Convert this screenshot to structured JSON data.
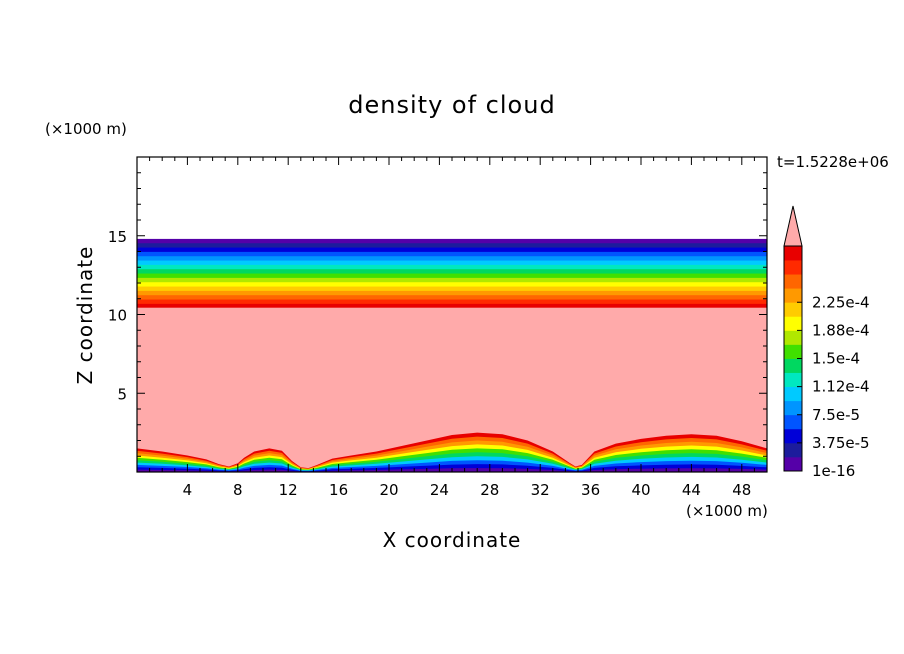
{
  "chart_data": {
    "type": "heatmap",
    "title": "density of cloud",
    "xlabel": "X coordinate",
    "ylabel": "Z coordinate",
    "x_unit": "(×1000 m)",
    "y_unit": "(×1000 m)",
    "time_label": "t=1.5228e+06",
    "xlim": [
      0,
      50
    ],
    "ylim": [
      0,
      20
    ],
    "x_ticks": [
      4,
      8,
      12,
      16,
      20,
      24,
      28,
      32,
      36,
      40,
      44,
      48
    ],
    "y_ticks": [
      5,
      10,
      15
    ],
    "colorbar": {
      "labels": [
        "1e-16",
        "3.75e-5",
        "7.5e-5",
        "1.12e-4",
        "1.5e-4",
        "1.88e-4",
        "2.25e-4"
      ],
      "colors": [
        "#5500a8",
        "#1c1c9c",
        "#0000d8",
        "#0055ff",
        "#0095ff",
        "#00caff",
        "#00e8c0",
        "#00d860",
        "#40e000",
        "#b0e800",
        "#ffff00",
        "#ffcc00",
        "#ff9900",
        "#ff6600",
        "#ff2a00",
        "#e80000"
      ],
      "overflow_color": "#ffaaaa"
    },
    "upper_layer": {
      "bottom_z": 10.4,
      "top_z": 14.8
    },
    "surface_profile": [
      [
        0,
        1.5
      ],
      [
        2,
        1.3
      ],
      [
        4,
        1.05
      ],
      [
        5.5,
        0.8
      ],
      [
        6.5,
        0.5
      ],
      [
        7.3,
        0.35
      ],
      [
        8,
        0.55
      ],
      [
        8.5,
        0.9
      ],
      [
        9.3,
        1.3
      ],
      [
        10.5,
        1.5
      ],
      [
        11.5,
        1.35
      ],
      [
        12.3,
        0.7
      ],
      [
        13,
        0.3
      ],
      [
        13.6,
        0.25
      ],
      [
        14.3,
        0.45
      ],
      [
        15.5,
        0.85
      ],
      [
        17,
        1.05
      ],
      [
        19,
        1.3
      ],
      [
        21,
        1.65
      ],
      [
        23,
        2.0
      ],
      [
        25,
        2.35
      ],
      [
        27,
        2.5
      ],
      [
        29,
        2.4
      ],
      [
        31,
        2.0
      ],
      [
        33,
        1.3
      ],
      [
        34.3,
        0.6
      ],
      [
        34.8,
        0.35
      ],
      [
        35.3,
        0.45
      ],
      [
        36.3,
        1.3
      ],
      [
        38,
        1.8
      ],
      [
        40,
        2.1
      ],
      [
        42,
        2.3
      ],
      [
        44,
        2.4
      ],
      [
        46,
        2.3
      ],
      [
        48,
        1.95
      ],
      [
        50,
        1.5
      ]
    ]
  }
}
